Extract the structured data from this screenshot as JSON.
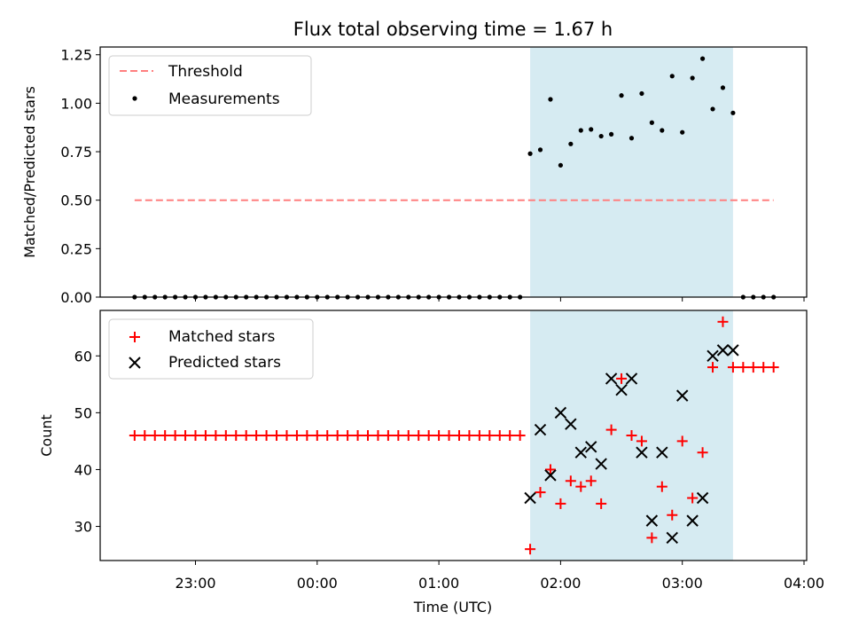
{
  "chart_data": [
    {
      "type": "scatter",
      "title": "Flux total observing time = 1.67 h",
      "xlabel": "",
      "ylabel": "Matched/Predicted stars",
      "ylim": [
        0,
        1.29
      ],
      "yticks": [
        "0.00",
        "0.25",
        "0.50",
        "0.75",
        "1.00",
        "1.25"
      ],
      "shaded_span": {
        "from": "01:45",
        "to": "03:25",
        "color": "#add8e6"
      },
      "legend": {
        "position": "top-left",
        "entries": [
          "Threshold",
          "Measurements"
        ]
      },
      "series": [
        {
          "name": "Threshold",
          "style": "dashed-line",
          "color": "#ff7f7f",
          "x": [
            "22:30",
            "03:45"
          ],
          "y": [
            0.5,
            0.5
          ]
        },
        {
          "name": "Measurements",
          "style": "dot",
          "color": "#000000",
          "x": [
            "22:30",
            "22:35",
            "22:40",
            "22:45",
            "22:50",
            "22:55",
            "23:00",
            "23:05",
            "23:10",
            "23:15",
            "23:20",
            "23:25",
            "23:30",
            "23:35",
            "23:40",
            "23:45",
            "23:50",
            "23:55",
            "00:00",
            "00:05",
            "00:10",
            "00:15",
            "00:20",
            "00:25",
            "00:30",
            "00:35",
            "00:40",
            "00:45",
            "00:50",
            "00:55",
            "01:00",
            "01:05",
            "01:10",
            "01:15",
            "01:20",
            "01:25",
            "01:30",
            "01:35",
            "01:40",
            "01:45",
            "01:50",
            "01:55",
            "02:00",
            "02:05",
            "02:10",
            "02:15",
            "02:20",
            "02:25",
            "02:30",
            "02:35",
            "02:40",
            "02:45",
            "02:50",
            "02:55",
            "03:00",
            "03:05",
            "03:10",
            "03:15",
            "03:20",
            "03:25",
            "03:30",
            "03:35",
            "03:40",
            "03:45"
          ],
          "y": [
            0,
            0,
            0,
            0,
            0,
            0,
            0,
            0,
            0,
            0,
            0,
            0,
            0,
            0,
            0,
            0,
            0,
            0,
            0,
            0,
            0,
            0,
            0,
            0,
            0,
            0,
            0,
            0,
            0,
            0,
            0,
            0,
            0,
            0,
            0,
            0,
            0,
            0,
            0,
            0.74,
            0.76,
            1.02,
            0.68,
            0.79,
            0.86,
            0.865,
            0.83,
            0.84,
            1.04,
            0.82,
            1.05,
            0.9,
            0.86,
            1.14,
            0.85,
            1.13,
            1.23,
            0.97,
            1.08,
            0.95,
            0,
            0,
            0,
            0
          ]
        }
      ]
    },
    {
      "type": "scatter",
      "title": "",
      "xlabel": "Time (UTC)",
      "ylabel": "Count",
      "ylim": [
        24,
        68
      ],
      "yticks": [
        "30",
        "40",
        "50",
        "60"
      ],
      "xticks": [
        "23:00",
        "00:00",
        "01:00",
        "02:00",
        "03:00",
        "04:00"
      ],
      "shaded_span": {
        "from": "01:45",
        "to": "03:25",
        "color": "#add8e6"
      },
      "legend": {
        "position": "top-left",
        "entries": [
          "Matched stars",
          "Predicted stars"
        ]
      },
      "series": [
        {
          "name": "Matched stars",
          "style": "plus",
          "color": "#ff0000",
          "x": [
            "22:30",
            "22:35",
            "22:40",
            "22:45",
            "22:50",
            "22:55",
            "23:00",
            "23:05",
            "23:10",
            "23:15",
            "23:20",
            "23:25",
            "23:30",
            "23:35",
            "23:40",
            "23:45",
            "23:50",
            "23:55",
            "00:00",
            "00:05",
            "00:10",
            "00:15",
            "00:20",
            "00:25",
            "00:30",
            "00:35",
            "00:40",
            "00:45",
            "00:50",
            "00:55",
            "01:00",
            "01:05",
            "01:10",
            "01:15",
            "01:20",
            "01:25",
            "01:30",
            "01:35",
            "01:40",
            "01:45",
            "01:50",
            "01:55",
            "02:00",
            "02:05",
            "02:10",
            "02:15",
            "02:20",
            "02:25",
            "02:30",
            "02:35",
            "02:40",
            "02:45",
            "02:50",
            "02:55",
            "03:00",
            "03:05",
            "03:10",
            "03:15",
            "03:20",
            "03:25",
            "03:30",
            "03:35",
            "03:40",
            "03:45"
          ],
          "y": [
            46,
            46,
            46,
            46,
            46,
            46,
            46,
            46,
            46,
            46,
            46,
            46,
            46,
            46,
            46,
            46,
            46,
            46,
            46,
            46,
            46,
            46,
            46,
            46,
            46,
            46,
            46,
            46,
            46,
            46,
            46,
            46,
            46,
            46,
            46,
            46,
            46,
            46,
            46,
            26,
            36,
            40,
            34,
            38,
            37,
            38,
            34,
            47,
            56,
            46,
            45,
            28,
            37,
            32,
            45,
            35,
            43,
            58,
            66,
            58,
            58,
            58,
            58,
            58
          ]
        },
        {
          "name": "Predicted stars",
          "style": "x",
          "color": "#000000",
          "x": [
            "01:45",
            "01:50",
            "01:55",
            "02:00",
            "02:05",
            "02:10",
            "02:15",
            "02:20",
            "02:25",
            "02:30",
            "02:35",
            "02:40",
            "02:45",
            "02:50",
            "02:55",
            "03:00",
            "03:05",
            "03:10",
            "03:15",
            "03:20",
            "03:25"
          ],
          "y": [
            35,
            47,
            39,
            50,
            48,
            43,
            44,
            41,
            56,
            54,
            56,
            43,
            31,
            43,
            28,
            53,
            31,
            35,
            60,
            61,
            61
          ]
        }
      ]
    }
  ]
}
